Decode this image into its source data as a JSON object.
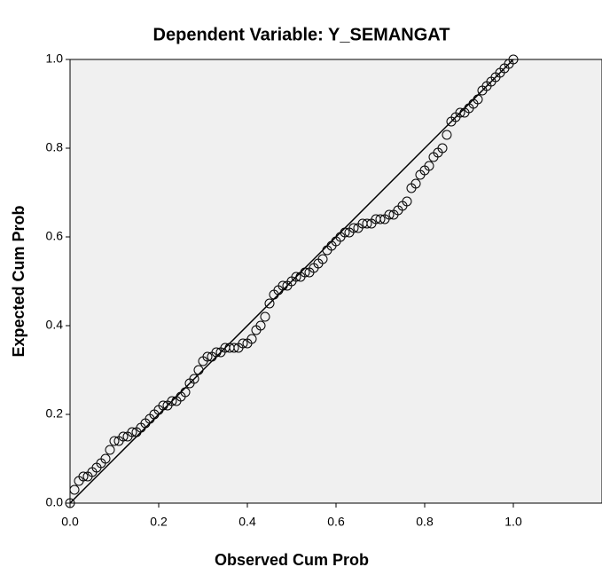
{
  "chart_data": {
    "type": "scatter",
    "title": "Dependent Variable: Y_SEMANGAT",
    "x_label": "Observed Cum Prob",
    "y_label": "Expected Cum Prob",
    "x": [
      0.0,
      0.01,
      0.02,
      0.03,
      0.04,
      0.05,
      0.06,
      0.07,
      0.08,
      0.09,
      0.1,
      0.11,
      0.12,
      0.13,
      0.14,
      0.15,
      0.16,
      0.17,
      0.18,
      0.19,
      0.2,
      0.21,
      0.22,
      0.23,
      0.24,
      0.25,
      0.26,
      0.27,
      0.28,
      0.29,
      0.3,
      0.31,
      0.32,
      0.33,
      0.34,
      0.35,
      0.36,
      0.37,
      0.38,
      0.39,
      0.4,
      0.41,
      0.42,
      0.43,
      0.44,
      0.45,
      0.46,
      0.47,
      0.48,
      0.49,
      0.5,
      0.51,
      0.52,
      0.53,
      0.54,
      0.55,
      0.56,
      0.57,
      0.58,
      0.59,
      0.6,
      0.61,
      0.62,
      0.63,
      0.64,
      0.65,
      0.66,
      0.67,
      0.68,
      0.69,
      0.7,
      0.71,
      0.72,
      0.73,
      0.74,
      0.75,
      0.76,
      0.77,
      0.78,
      0.79,
      0.8,
      0.81,
      0.82,
      0.83,
      0.84,
      0.85,
      0.86,
      0.87,
      0.88,
      0.89,
      0.9,
      0.91,
      0.92,
      0.93,
      0.94,
      0.95,
      0.96,
      0.97,
      0.98,
      0.99,
      1.0
    ],
    "values": [
      0.0,
      0.03,
      0.05,
      0.06,
      0.06,
      0.07,
      0.08,
      0.09,
      0.1,
      0.12,
      0.14,
      0.14,
      0.15,
      0.15,
      0.16,
      0.16,
      0.17,
      0.18,
      0.19,
      0.2,
      0.21,
      0.22,
      0.22,
      0.23,
      0.23,
      0.24,
      0.25,
      0.27,
      0.28,
      0.3,
      0.32,
      0.33,
      0.33,
      0.34,
      0.34,
      0.35,
      0.35,
      0.35,
      0.35,
      0.36,
      0.36,
      0.37,
      0.39,
      0.4,
      0.42,
      0.45,
      0.47,
      0.48,
      0.49,
      0.49,
      0.5,
      0.51,
      0.51,
      0.52,
      0.52,
      0.53,
      0.54,
      0.55,
      0.57,
      0.58,
      0.59,
      0.6,
      0.61,
      0.61,
      0.62,
      0.62,
      0.63,
      0.63,
      0.63,
      0.64,
      0.64,
      0.64,
      0.65,
      0.65,
      0.66,
      0.67,
      0.68,
      0.71,
      0.72,
      0.74,
      0.75,
      0.76,
      0.78,
      0.79,
      0.8,
      0.83,
      0.86,
      0.87,
      0.88,
      0.88,
      0.89,
      0.9,
      0.91,
      0.93,
      0.94,
      0.95,
      0.96,
      0.97,
      0.98,
      0.99,
      1.0
    ],
    "reference_line": {
      "x": [
        0,
        1
      ],
      "y": [
        0,
        1
      ]
    },
    "xlim": [
      0,
      1.2
    ],
    "ylim": [
      0,
      1
    ],
    "xticks": [
      {
        "value": 0,
        "label": "0.0"
      },
      0.2,
      0.4,
      0.6,
      0.8,
      {
        "value": 1,
        "label": "1.0"
      }
    ],
    "yticks": [
      {
        "value": 0,
        "label": "0.0"
      },
      0.2,
      0.4,
      0.6,
      0.8,
      {
        "value": 1,
        "label": "1.0"
      }
    ],
    "color": "#000000",
    "background": "#f0f0f0",
    "grid": false
  }
}
